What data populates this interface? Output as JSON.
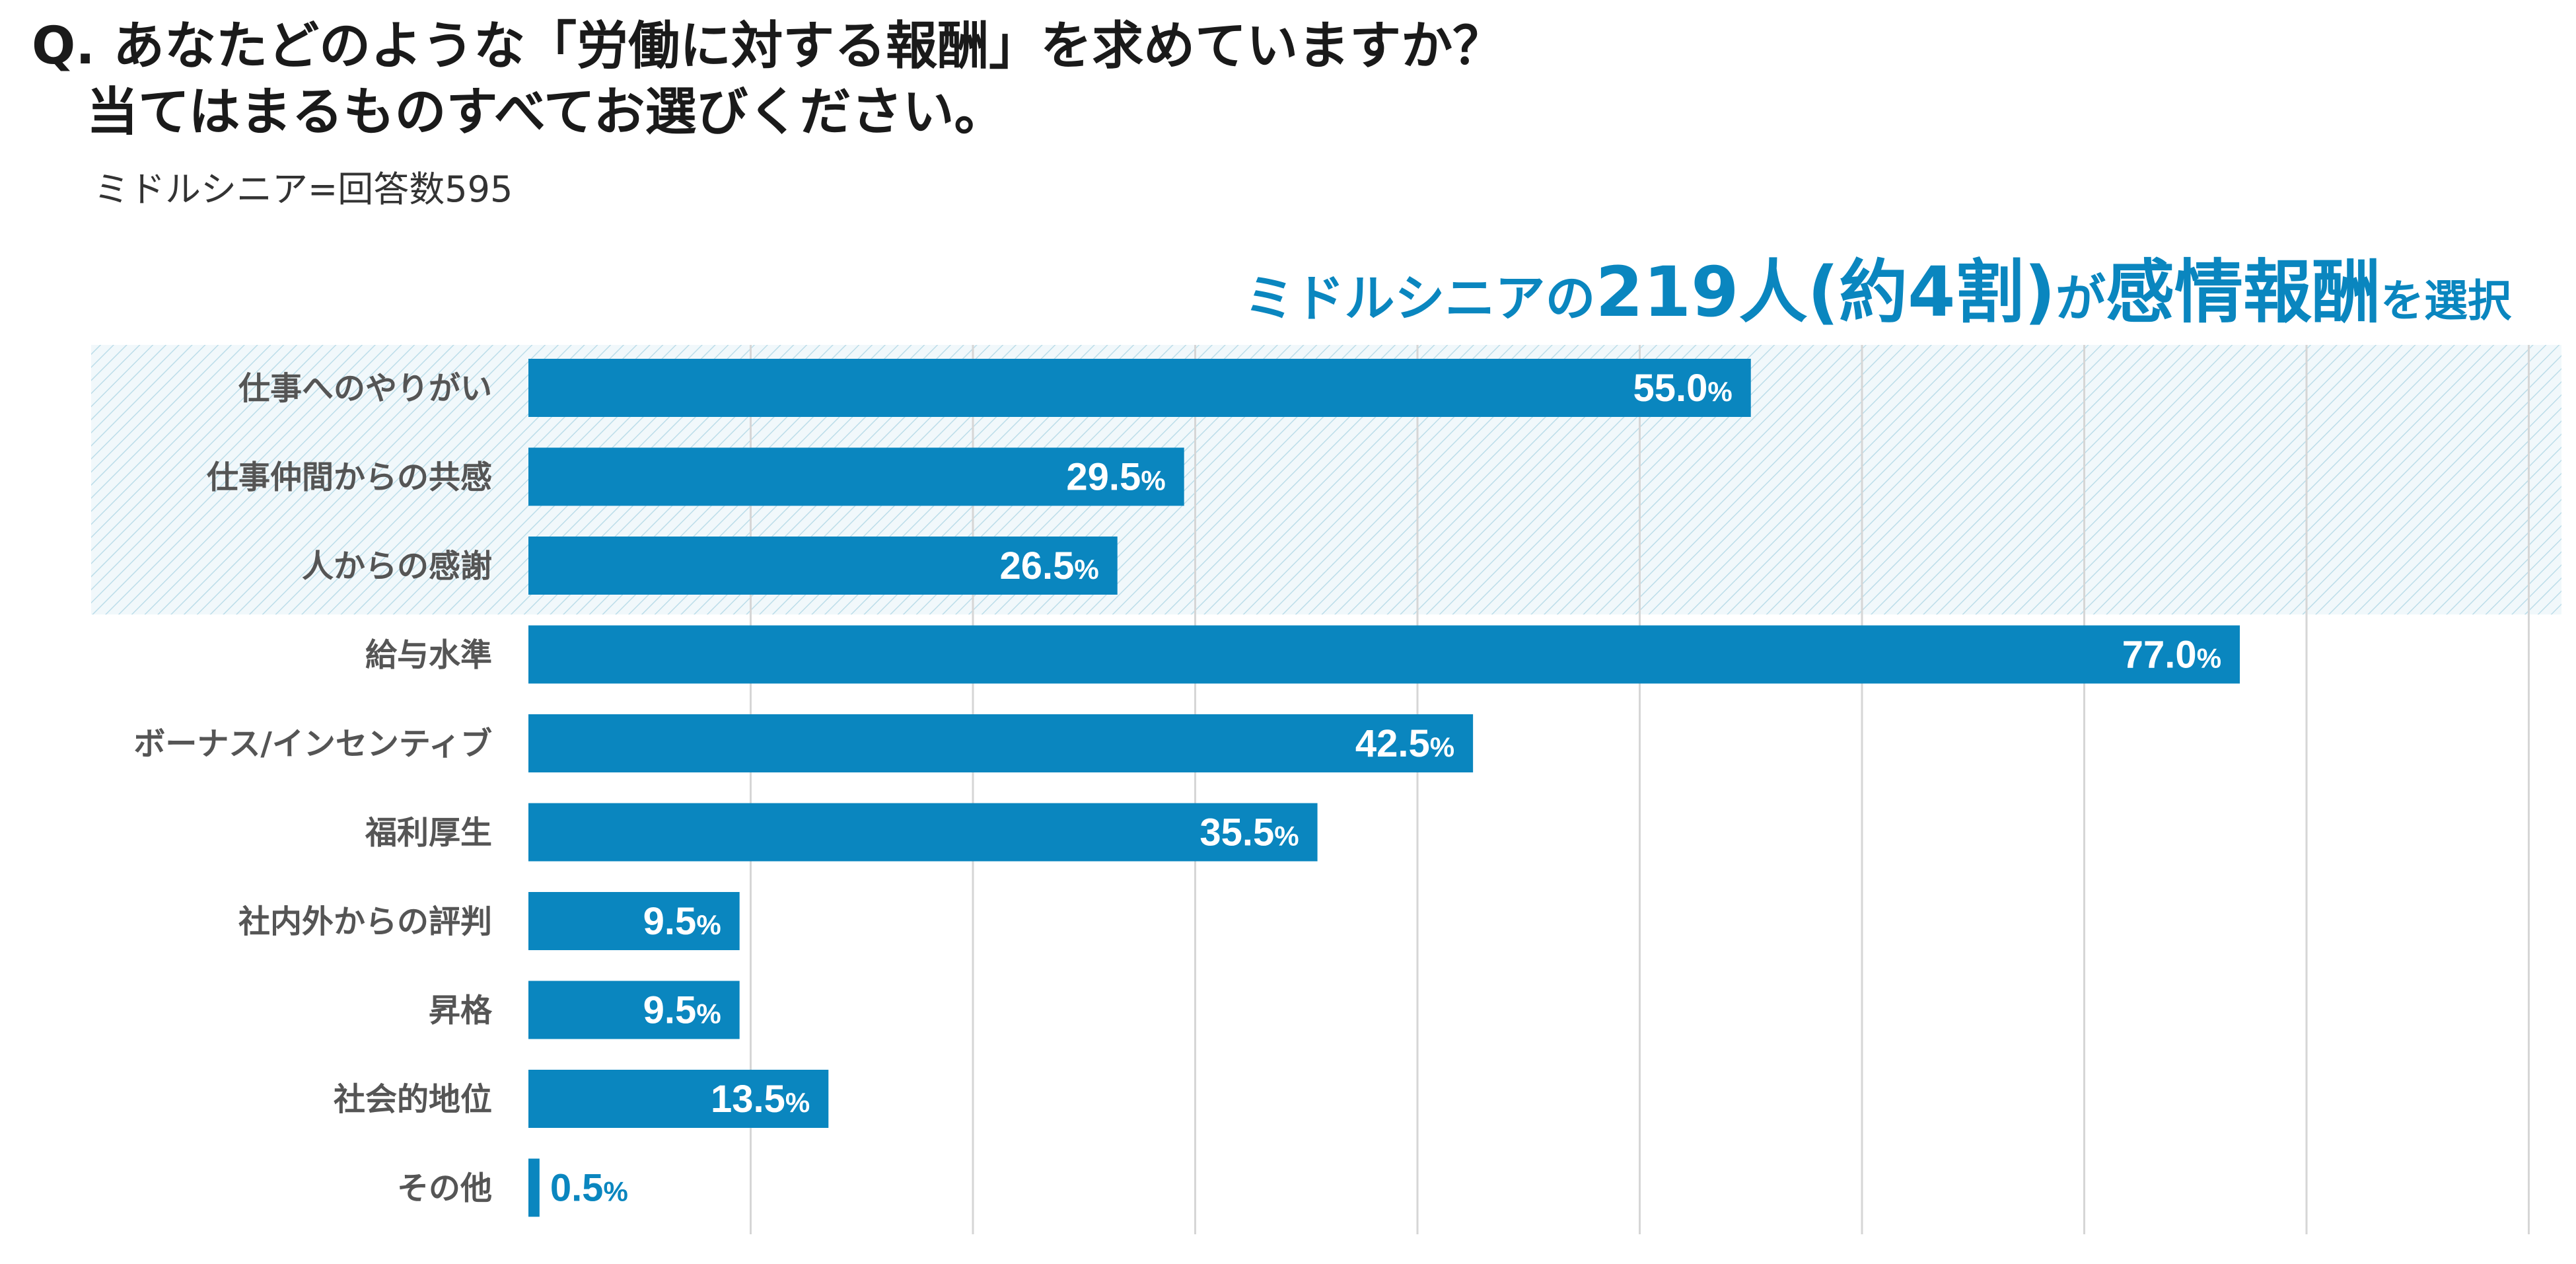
{
  "header": {
    "question_line1": "Q. あなたどのような「労働に対する報酬」を求めていますか？",
    "question_line2": "当てはまるものすべてお選びください。",
    "sample_note": "ミドルシニア=回答数595"
  },
  "callout": {
    "prefix": "ミドルシニアの",
    "count": "219人",
    "ratio": "(約4割)",
    "middle": "が",
    "highlight": "感情報酬",
    "suffix": "を選択"
  },
  "chart_data": {
    "type": "bar",
    "orientation": "horizontal",
    "title": "Q. あなたどのような「労働に対する報酬」を求めていますか？ 当てはまるものすべてお選びください。",
    "subtitle": "ミドルシニア=回答数595",
    "categories": [
      "仕事へのやりがい",
      "仕事仲間からの共感",
      "人からの感謝",
      "給与水準",
      "ボーナス/インセンティブ",
      "福利厚生",
      "社内外からの評判",
      "昇格",
      "社会的地位",
      "その他"
    ],
    "values": [
      55.0,
      29.5,
      26.5,
      77.0,
      42.5,
      35.5,
      9.5,
      9.5,
      13.5,
      0.5
    ],
    "value_labels": [
      "55.0",
      "29.5",
      "26.5",
      "77.0",
      "42.5",
      "35.5",
      "9.5",
      "9.5",
      "13.5",
      "0.5"
    ],
    "unit": "%",
    "highlighted_categories": [
      "仕事へのやりがい",
      "仕事仲間からの共感",
      "人からの感謝"
    ],
    "xlim": [
      0,
      90
    ],
    "grid": true,
    "legend": "none"
  },
  "colors": {
    "bar": "#0a86bf",
    "label_inside": "#ffffff",
    "label_outside": "#0a86bf",
    "category_text": "#555555",
    "grid": "#d6d6d6",
    "highlight_stripe": "#bcdde9",
    "highlight_bg": "#f1f8fb",
    "callout": "#0a86bf"
  }
}
